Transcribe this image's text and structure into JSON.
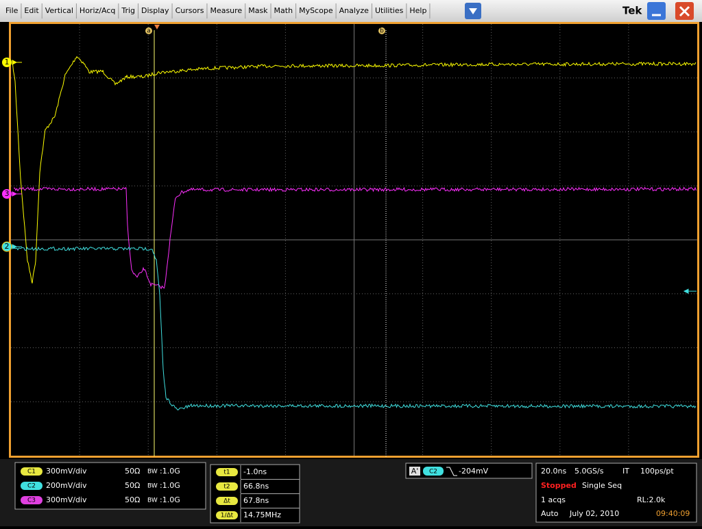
{
  "menu": {
    "items": [
      "File",
      "Edit",
      "Vertical",
      "Horiz/Acq",
      "Trig",
      "Display",
      "Cursors",
      "Measure",
      "Mask",
      "Math",
      "MyScope",
      "Analyze",
      "Utilities",
      "Help"
    ],
    "brand": "Tek"
  },
  "cursors": {
    "a": "a",
    "b": "b"
  },
  "markers": {
    "ch1": "1",
    "ch3": "3",
    "ch2": "2"
  },
  "channels": [
    {
      "badge": "C1",
      "scale": "300mV/div",
      "impedance": "50Ω",
      "bw_label": "BW",
      "bandwidth": ":1.0G"
    },
    {
      "badge": "C2",
      "scale": "200mV/div",
      "impedance": "50Ω",
      "bw_label": "BW",
      "bandwidth": ":1.0G"
    },
    {
      "badge": "C3",
      "scale": "300mV/div",
      "impedance": "50Ω",
      "bw_label": "BW",
      "bandwidth": ":1.0G"
    }
  ],
  "cursor_readout": [
    {
      "label": "t1",
      "value": "-1.0ns"
    },
    {
      "label": "t2",
      "value": "66.8ns"
    },
    {
      "label": "Δt",
      "value": "67.8ns"
    },
    {
      "label": "1/Δt",
      "value": "14.75MHz"
    }
  ],
  "trigger": {
    "mode": "A'",
    "source": "C2",
    "level": "-204mV"
  },
  "acquisition": {
    "timebase": "20.0ns",
    "sample_rate": "5.0GS/s",
    "mode": "IT",
    "resolution": "100ps/pt",
    "status": "Stopped",
    "sequence": "Single Seq",
    "acqs": "1 acqs",
    "record_length": "RL:2.0k",
    "trigger_mode": "Auto",
    "date": "July 02, 2010",
    "time": "09:40:09"
  }
}
